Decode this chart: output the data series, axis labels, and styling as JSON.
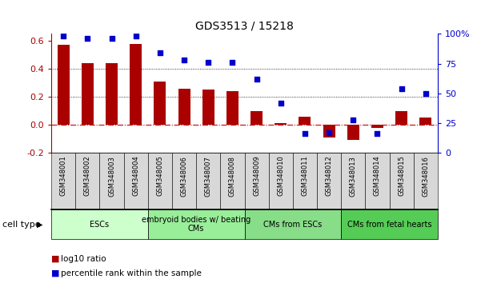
{
  "title": "GDS3513 / 15218",
  "samples": [
    "GSM348001",
    "GSM348002",
    "GSM348003",
    "GSM348004",
    "GSM348005",
    "GSM348006",
    "GSM348007",
    "GSM348008",
    "GSM348009",
    "GSM348010",
    "GSM348011",
    "GSM348012",
    "GSM348013",
    "GSM348014",
    "GSM348015",
    "GSM348016"
  ],
  "log10_ratio": [
    0.57,
    0.44,
    0.44,
    0.58,
    0.31,
    0.26,
    0.25,
    0.24,
    0.1,
    0.01,
    0.06,
    -0.09,
    -0.11,
    -0.02,
    0.1,
    0.05
  ],
  "percentile_rank": [
    98,
    96,
    96,
    98,
    84,
    78,
    76,
    76,
    62,
    42,
    16,
    17,
    28,
    16,
    54,
    50
  ],
  "bar_color": "#aa0000",
  "dot_color": "#0000cc",
  "ylim_left": [
    -0.2,
    0.65
  ],
  "ylim_right": [
    0,
    100
  ],
  "yticks_left": [
    -0.2,
    0.0,
    0.2,
    0.4,
    0.6
  ],
  "yticks_right": [
    0,
    25,
    50,
    75,
    100
  ],
  "zero_line_color": "#cc0000",
  "grid_color": "#000000",
  "cell_types": [
    {
      "label": "ESCs",
      "start": 0,
      "end": 3,
      "color": "#ccffcc"
    },
    {
      "label": "embryoid bodies w/ beating\nCMs",
      "start": 4,
      "end": 7,
      "color": "#99ee99"
    },
    {
      "label": "CMs from ESCs",
      "start": 8,
      "end": 11,
      "color": "#88dd88"
    },
    {
      "label": "CMs from fetal hearts",
      "start": 12,
      "end": 15,
      "color": "#55cc55"
    }
  ],
  "legend_bar_label": "log10 ratio",
  "legend_dot_label": "percentile rank within the sample",
  "cell_type_label": "cell type",
  "xticklabel_fontsize": 6.0,
  "yticklabel_fontsize_left": 8,
  "yticklabel_fontsize_right": 8,
  "title_fontsize": 10,
  "bar_width": 0.5,
  "dot_size": 22,
  "xlim": [
    -0.5,
    15.5
  ]
}
